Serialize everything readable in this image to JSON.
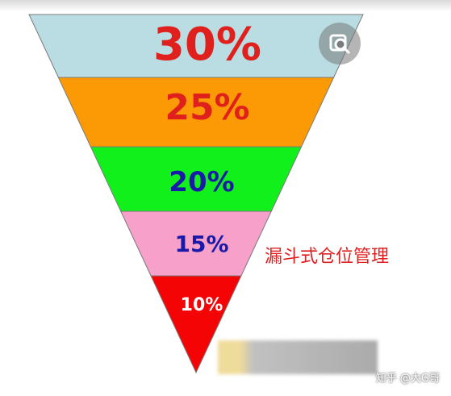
{
  "funnel": {
    "levels": [
      {
        "label": "30%",
        "value": 30,
        "fill": "#b9dde3",
        "text_color": "#e0201c"
      },
      {
        "label": "25%",
        "value": 25,
        "fill": "#fb9a04",
        "text_color": "#e0201c"
      },
      {
        "label": "20%",
        "value": 20,
        "fill": "#12f01b",
        "text_color": "#1a1aa8"
      },
      {
        "label": "15%",
        "value": 15,
        "fill": "#f7a0ca",
        "text_color": "#1a1aa8"
      },
      {
        "label": "10%",
        "value": 10,
        "fill": "#f40404",
        "text_color": "#ffffff"
      }
    ]
  },
  "side_label": "漏斗式仓位管理",
  "image_search_icon": "image-search-icon",
  "watermark": "知乎 @大G哥"
}
